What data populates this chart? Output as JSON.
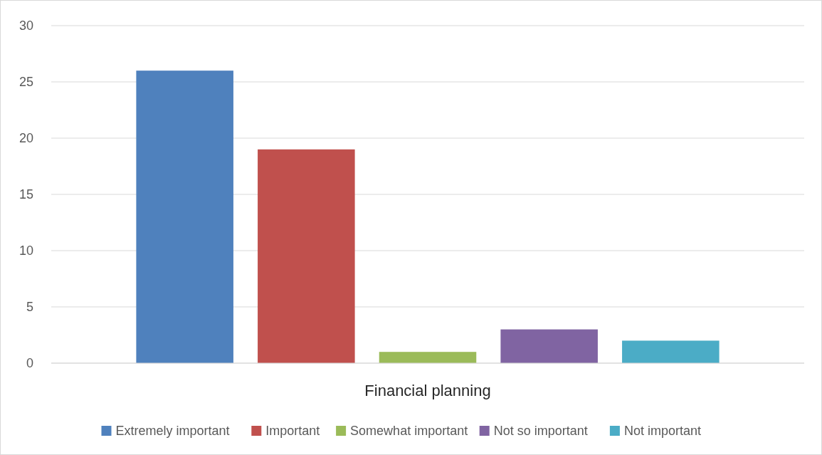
{
  "chart_data": {
    "type": "bar",
    "categories": [
      "Financial planning"
    ],
    "series": [
      {
        "name": "Extremely important",
        "color": "#4f81bd",
        "values": [
          26
        ]
      },
      {
        "name": "Important",
        "color": "#c0504d",
        "values": [
          19
        ]
      },
      {
        "name": "Somewhat important",
        "color": "#9bbb59",
        "values": [
          1
        ]
      },
      {
        "name": "Not so important",
        "color": "#8064a2",
        "values": [
          3
        ]
      },
      {
        "name": "Not important",
        "color": "#4bacc6",
        "values": [
          2
        ]
      }
    ],
    "ylim": [
      0,
      30
    ],
    "yticks": [
      0,
      5,
      10,
      15,
      20,
      25,
      30
    ],
    "grid": "y",
    "legend": "bottom"
  }
}
